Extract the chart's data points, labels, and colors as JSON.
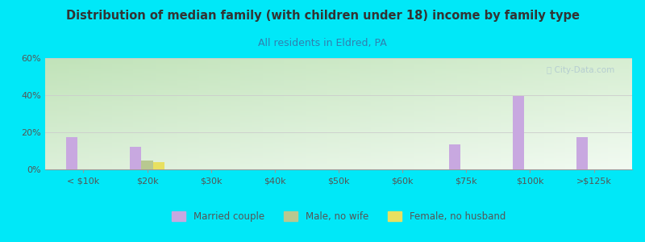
{
  "title": "Distribution of median family (with children under 18) income by family type",
  "subtitle": "All residents in Eldred, PA",
  "categories": [
    "< $10k",
    "$20k",
    "$30k",
    "$40k",
    "$50k",
    "$60k",
    "$75k",
    "$100k",
    ">$125k"
  ],
  "married_couple": [
    17.5,
    12.0,
    0,
    0,
    0,
    0,
    13.5,
    39.5,
    17.5
  ],
  "male_no_wife": [
    0,
    5.0,
    0,
    0,
    0,
    0,
    0,
    0,
    0
  ],
  "female_no_husband": [
    0,
    4.0,
    0,
    0,
    0,
    0,
    0,
    0,
    0
  ],
  "married_color": "#c8a8e0",
  "male_color": "#b8c890",
  "female_color": "#e8e060",
  "ylim": [
    0,
    60
  ],
  "yticks": [
    0,
    20,
    40,
    60
  ],
  "ytick_labels": [
    "0%",
    "20%",
    "40%",
    "60%"
  ],
  "bg_outer": "#00e8f8",
  "bg_plot_grad_top_left": "#c8e8c0",
  "bg_plot_grad_right": "#f0faf0",
  "grid_color": "#cccccc",
  "title_color": "#333333",
  "subtitle_color": "#3080b0",
  "axis_label_color": "#555555",
  "watermark": "City-Data.com",
  "bar_width": 0.18,
  "legend_dot_color_married": "#c8a8e0",
  "legend_dot_color_male": "#b8c890",
  "legend_dot_color_female": "#e8e060"
}
